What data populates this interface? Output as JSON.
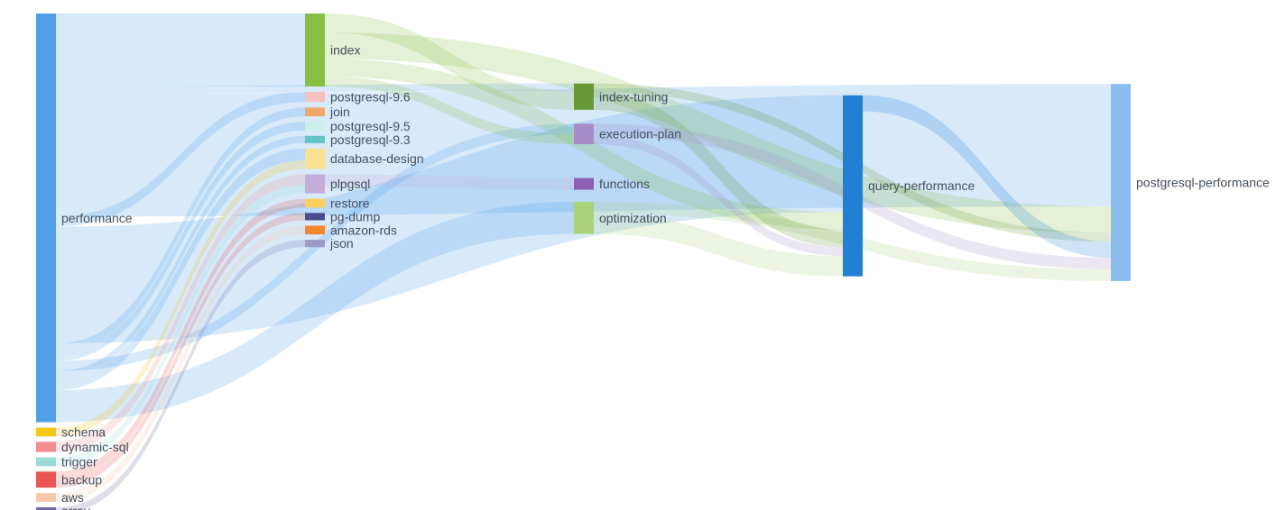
{
  "chart_data": {
    "type": "sankey",
    "nodes": [
      {
        "id": "performance",
        "label": "performance",
        "color": "#4e9fe6",
        "column": 0
      },
      {
        "id": "schema",
        "label": "schema",
        "color": "#f5c518",
        "column": 0
      },
      {
        "id": "dynamic-sql",
        "label": "dynamic-sql",
        "color": "#ee8e8e",
        "column": 0
      },
      {
        "id": "trigger",
        "label": "trigger",
        "color": "#9adbd6",
        "column": 0
      },
      {
        "id": "backup",
        "label": "backup",
        "color": "#ea5454",
        "column": 0
      },
      {
        "id": "aws",
        "label": "aws",
        "color": "#f8c9a8",
        "column": 0
      },
      {
        "id": "array",
        "label": "array",
        "color": "#6c6ca8",
        "column": 0
      },
      {
        "id": "index",
        "label": "index",
        "color": "#86bf44",
        "column": 1
      },
      {
        "id": "postgresql-9.6",
        "label": "postgresql-9.6",
        "color": "#f6c0c0",
        "column": 1
      },
      {
        "id": "join",
        "label": "join",
        "color": "#f0a868",
        "column": 1
      },
      {
        "id": "postgresql-9.5",
        "label": "postgresql-9.5",
        "color": "#ccefe9",
        "column": 1
      },
      {
        "id": "postgresql-9.3",
        "label": "postgresql-9.3",
        "color": "#62c4c3",
        "column": 1
      },
      {
        "id": "database-design",
        "label": "database-design",
        "color": "#fbe094",
        "column": 1
      },
      {
        "id": "plpgsql",
        "label": "plpgsql",
        "color": "#c5acd9",
        "column": 1
      },
      {
        "id": "restore",
        "label": "restore",
        "color": "#fcd058",
        "column": 1
      },
      {
        "id": "pg-dump",
        "label": "pg-dump",
        "color": "#4a4a8c",
        "column": 1
      },
      {
        "id": "amazon-rds",
        "label": "amazon-rds",
        "color": "#f4852f",
        "column": 1
      },
      {
        "id": "json",
        "label": "json",
        "color": "#9a9ac4",
        "column": 1
      },
      {
        "id": "optimization",
        "label": "optimization",
        "color": "#a8d37a",
        "column": 2
      },
      {
        "id": "index-tuning",
        "label": "index-tuning",
        "color": "#679936",
        "column": 2
      },
      {
        "id": "execution-plan",
        "label": "execution-plan",
        "color": "#a88bc8",
        "column": 2
      },
      {
        "id": "functions",
        "label": "functions",
        "color": "#8e5fb4",
        "column": 2
      },
      {
        "id": "query-performance",
        "label": "query-performance",
        "color": "#217fd4",
        "column": 3
      },
      {
        "id": "postgresql-performance",
        "label": "postgresql-performance",
        "color": "#8bbcee",
        "column": 4
      }
    ],
    "links": [
      {
        "source": "performance",
        "target": "postgresql-performance",
        "value": 84
      },
      {
        "source": "performance",
        "target": "query-performance",
        "value": 80
      },
      {
        "source": "performance",
        "target": "index",
        "value": 50
      },
      {
        "source": "performance",
        "target": "optimization",
        "value": 22
      },
      {
        "source": "performance",
        "target": "postgresql-9.6",
        "value": 7
      },
      {
        "source": "performance",
        "target": "index-tuning",
        "value": 5
      },
      {
        "source": "performance",
        "target": "join",
        "value": 6
      },
      {
        "source": "performance",
        "target": "execution-plan",
        "value": 7
      },
      {
        "source": "performance",
        "target": "postgresql-9.5",
        "value": 6
      },
      {
        "source": "performance",
        "target": "postgresql-9.3",
        "value": 5
      },
      {
        "source": "performance",
        "target": "database-design",
        "value": 8
      },
      {
        "source": "schema",
        "target": "database-design",
        "value": 6
      },
      {
        "source": "dynamic-sql",
        "target": "plpgsql",
        "value": 7
      },
      {
        "source": "trigger",
        "target": "plpgsql",
        "value": 6
      },
      {
        "source": "backup",
        "target": "restore",
        "value": 6
      },
      {
        "source": "backup",
        "target": "pg-dump",
        "value": 5
      },
      {
        "source": "aws",
        "target": "amazon-rds",
        "value": 6
      },
      {
        "source": "array",
        "target": "json",
        "value": 5
      },
      {
        "source": "index",
        "target": "postgresql-performance",
        "value": 18
      },
      {
        "source": "index",
        "target": "index-tuning",
        "value": 13
      },
      {
        "source": "index",
        "target": "query-performance",
        "value": 12
      },
      {
        "source": "index",
        "target": "execution-plan",
        "value": 7
      },
      {
        "source": "optimization",
        "target": "query-performance",
        "value": 14
      },
      {
        "source": "optimization",
        "target": "postgresql-performance",
        "value": 8
      },
      {
        "source": "index-tuning",
        "target": "postgresql-performance",
        "value": 6
      },
      {
        "source": "index-tuning",
        "target": "query-performance",
        "value": 12
      },
      {
        "source": "execution-plan",
        "target": "query-performance",
        "value": 6
      },
      {
        "source": "execution-plan",
        "target": "postgresql-performance",
        "value": 8
      },
      {
        "source": "plpgsql",
        "target": "functions",
        "value": 8
      },
      {
        "source": "query-performance",
        "target": "postgresql-performance",
        "value": 11
      }
    ]
  }
}
